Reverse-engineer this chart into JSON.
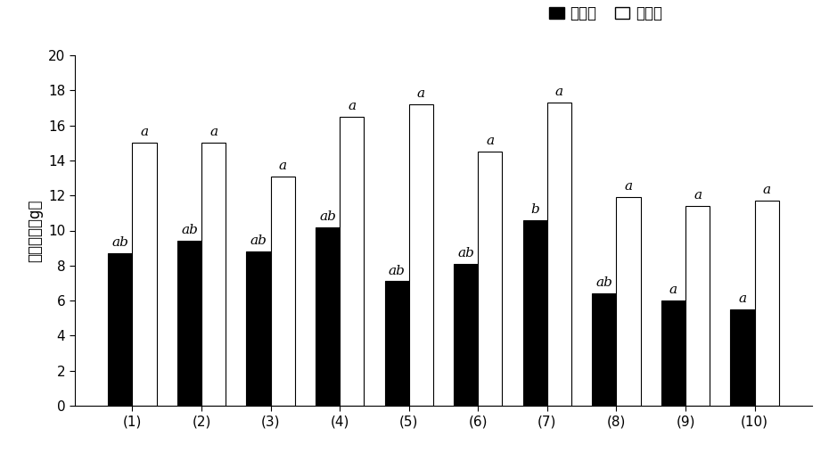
{
  "categories": [
    "(1)",
    "(2)",
    "(3)",
    "(4)",
    "(5)",
    "(6)",
    "(7)",
    "(8)",
    "(9)",
    "(10)"
  ],
  "pear_pollen": [
    8.7,
    9.4,
    8.8,
    10.2,
    7.1,
    8.1,
    10.6,
    6.4,
    6.0,
    5.5
  ],
  "total_pollen": [
    15.0,
    15.0,
    13.1,
    16.5,
    17.2,
    14.5,
    17.3,
    11.9,
    11.4,
    11.7
  ],
  "pear_labels": [
    "ab",
    "ab",
    "ab",
    "ab",
    "ab",
    "ab",
    "b",
    "ab",
    "a",
    "a"
  ],
  "total_labels": [
    "a",
    "a",
    "a",
    "a",
    "a",
    "a",
    "a",
    "a",
    "a",
    "a"
  ],
  "bar_color_pear": "#000000",
  "bar_color_total": "#ffffff",
  "bar_edgecolor": "#000000",
  "ylabel": "花粉重量（g）",
  "ylim": [
    0,
    20
  ],
  "yticks": [
    0,
    2,
    4,
    6,
    8,
    10,
    12,
    14,
    16,
    18,
    20
  ],
  "legend_pear": "梨花粉",
  "legend_total": "总花粉",
  "bar_width": 0.35,
  "label_fontsize": 11,
  "tick_fontsize": 11,
  "ylabel_fontsize": 12
}
